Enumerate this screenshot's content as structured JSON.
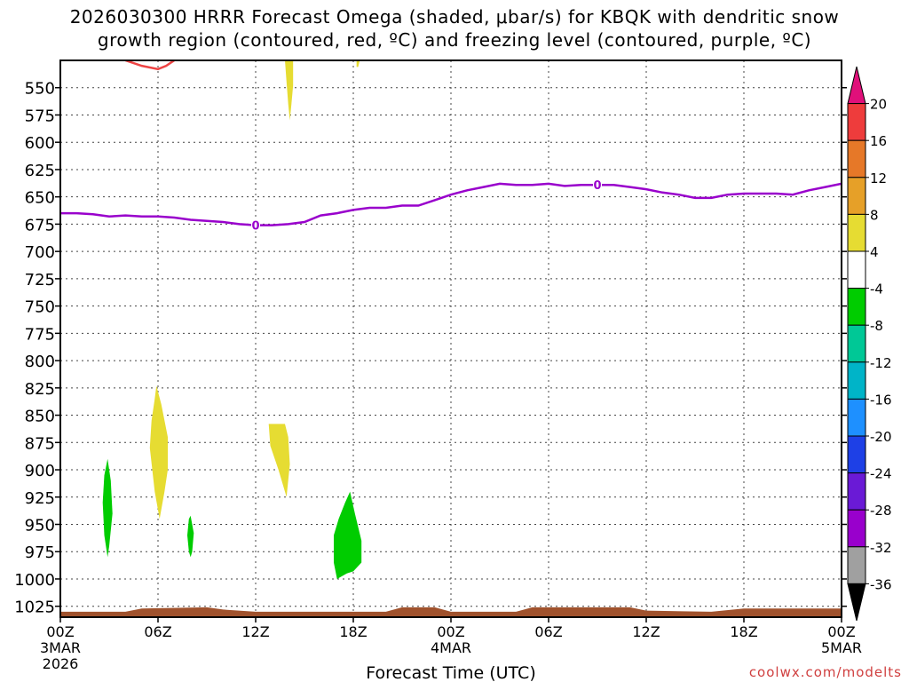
{
  "title": {
    "line1": "2026030300 HRRR Forecast Omega (shaded, μbar/s) for KBQK with dendritic snow",
    "line2": "growth region (contoured, red, ºC) and freezing level (contoured, purple, ºC)"
  },
  "credit": "coolwx.com/modelts",
  "chart_data": {
    "type": "contour-timeseries",
    "xlabel": "Forecast Time (UTC)",
    "x_hours_range": [
      0,
      48
    ],
    "y_axis": "pressure (hPa), inverted",
    "ylim": [
      1035,
      525
    ],
    "y_ticks": [
      550,
      575,
      600,
      625,
      650,
      675,
      700,
      725,
      750,
      775,
      800,
      825,
      850,
      875,
      900,
      925,
      950,
      975,
      1000,
      1025
    ],
    "x_ticks": [
      {
        "h": 0,
        "label": "00Z",
        "sub": [
          "3MAR",
          "2026"
        ]
      },
      {
        "h": 6,
        "label": "06Z"
      },
      {
        "h": 12,
        "label": "12Z"
      },
      {
        "h": 18,
        "label": "18Z"
      },
      {
        "h": 24,
        "label": "00Z",
        "sub": [
          "4MAR"
        ]
      },
      {
        "h": 30,
        "label": "06Z"
      },
      {
        "h": 36,
        "label": "12Z"
      },
      {
        "h": 42,
        "label": "18Z"
      },
      {
        "h": 48,
        "label": "00Z",
        "sub": [
          "5MAR"
        ]
      }
    ],
    "grid": true,
    "freezing_level": {
      "color": "#9900cc",
      "label": "0",
      "label_at": [
        12,
        33
      ],
      "points": [
        [
          0,
          665
        ],
        [
          1,
          665
        ],
        [
          2,
          666
        ],
        [
          3,
          668
        ],
        [
          4,
          667
        ],
        [
          5,
          668
        ],
        [
          6,
          668
        ],
        [
          7,
          669
        ],
        [
          8,
          671
        ],
        [
          9,
          672
        ],
        [
          10,
          673
        ],
        [
          11,
          675
        ],
        [
          12,
          676
        ],
        [
          13,
          676
        ],
        [
          14,
          675
        ],
        [
          15,
          673
        ],
        [
          16,
          667
        ],
        [
          17,
          665
        ],
        [
          18,
          662
        ],
        [
          19,
          660
        ],
        [
          20,
          660
        ],
        [
          21,
          658
        ],
        [
          22,
          658
        ],
        [
          23,
          653
        ],
        [
          24,
          648
        ],
        [
          25,
          644
        ],
        [
          26,
          641
        ],
        [
          27,
          638
        ],
        [
          28,
          639
        ],
        [
          29,
          639
        ],
        [
          30,
          638
        ],
        [
          31,
          640
        ],
        [
          32,
          639
        ],
        [
          33,
          639
        ],
        [
          34,
          639
        ],
        [
          35,
          641
        ],
        [
          36,
          643
        ],
        [
          37,
          646
        ],
        [
          38,
          648
        ],
        [
          39,
          651
        ],
        [
          40,
          651
        ],
        [
          41,
          648
        ],
        [
          42,
          647
        ],
        [
          43,
          647
        ],
        [
          44,
          647
        ],
        [
          45,
          648
        ],
        [
          46,
          644
        ],
        [
          47,
          641
        ],
        [
          48,
          638
        ]
      ]
    },
    "dgz_contour": {
      "color": "#ee4444",
      "points": [
        [
          4.0,
          525
        ],
        [
          5.0,
          530
        ],
        [
          6.0,
          533
        ],
        [
          6.5,
          530
        ],
        [
          7.0,
          525
        ]
      ]
    },
    "omega_areas": [
      {
        "band": "4 to 8",
        "color": "#e6dc32",
        "points": [
          [
            13.8,
            525
          ],
          [
            14.3,
            525
          ],
          [
            14.3,
            548
          ],
          [
            14.2,
            565
          ],
          [
            14.1,
            580
          ],
          [
            14.0,
            565
          ],
          [
            13.9,
            545
          ]
        ]
      },
      {
        "band": "4 to 8",
        "color": "#e6dc32",
        "points": [
          [
            18.2,
            525
          ],
          [
            18.4,
            525
          ],
          [
            18.3,
            531
          ],
          [
            18.2,
            531
          ]
        ]
      },
      {
        "band": "4 to 8",
        "color": "#e6dc32",
        "points": [
          [
            5.6,
            855
          ],
          [
            5.8,
            835
          ],
          [
            5.9,
            823
          ],
          [
            6.2,
            840
          ],
          [
            6.6,
            870
          ],
          [
            6.6,
            900
          ],
          [
            6.4,
            920
          ],
          [
            6.1,
            945
          ],
          [
            5.8,
            920
          ],
          [
            5.5,
            880
          ]
        ]
      },
      {
        "band": "4 to 8",
        "color": "#e6dc32",
        "points": [
          [
            12.8,
            858
          ],
          [
            13.8,
            858
          ],
          [
            14.0,
            870
          ],
          [
            14.1,
            895
          ],
          [
            13.9,
            925
          ],
          [
            13.4,
            900
          ],
          [
            12.9,
            878
          ]
        ]
      },
      {
        "band": "-8 to -4",
        "color": "#00cc00",
        "points": [
          [
            2.6,
            930
          ],
          [
            2.7,
            905
          ],
          [
            2.9,
            890
          ],
          [
            3.1,
            910
          ],
          [
            3.2,
            940
          ],
          [
            3.0,
            970
          ],
          [
            2.9,
            980
          ],
          [
            2.7,
            960
          ]
        ]
      },
      {
        "band": "-8 to -4",
        "color": "#00cc00",
        "points": [
          [
            7.8,
            960
          ],
          [
            7.9,
            945
          ],
          [
            8.0,
            942
          ],
          [
            8.2,
            958
          ],
          [
            8.1,
            975
          ],
          [
            8.0,
            980
          ],
          [
            7.9,
            975
          ]
        ]
      },
      {
        "band": "-8 to -4",
        "color": "#00cc00",
        "points": [
          [
            16.8,
            960
          ],
          [
            17.1,
            945
          ],
          [
            17.5,
            930
          ],
          [
            17.8,
            920
          ],
          [
            18.1,
            940
          ],
          [
            18.5,
            965
          ],
          [
            18.5,
            985
          ],
          [
            18.0,
            993
          ],
          [
            17.6,
            995
          ],
          [
            17.0,
            1000
          ],
          [
            16.8,
            985
          ]
        ]
      }
    ],
    "terrain": {
      "color": "#a0522d",
      "points": [
        [
          0,
          1030
        ],
        [
          4,
          1030
        ],
        [
          5,
          1027
        ],
        [
          9,
          1026
        ],
        [
          10,
          1028
        ],
        [
          12,
          1030
        ],
        [
          20,
          1030
        ],
        [
          21,
          1026
        ],
        [
          23,
          1026
        ],
        [
          24,
          1030
        ],
        [
          28,
          1030
        ],
        [
          29,
          1026
        ],
        [
          35,
          1026
        ],
        [
          36,
          1029
        ],
        [
          40,
          1030
        ],
        [
          42,
          1027
        ],
        [
          48,
          1027
        ]
      ]
    },
    "colorbar": {
      "colors": [
        "#000000",
        "#a0a0a0",
        "#9900cc",
        "#6a1ad6",
        "#1e40e6",
        "#1e90ff",
        "#00b4c8",
        "#00c896",
        "#00cc00",
        "#ffffff",
        "#e6dc32",
        "#e6a028",
        "#e67828",
        "#ee3c3c",
        "#e0107a"
      ],
      "labels": [
        "-36",
        "-32",
        "-28",
        "-24",
        "-20",
        "-16",
        "-12",
        "-8",
        "-4",
        "4",
        "8",
        "12",
        "16",
        "20"
      ]
    }
  }
}
